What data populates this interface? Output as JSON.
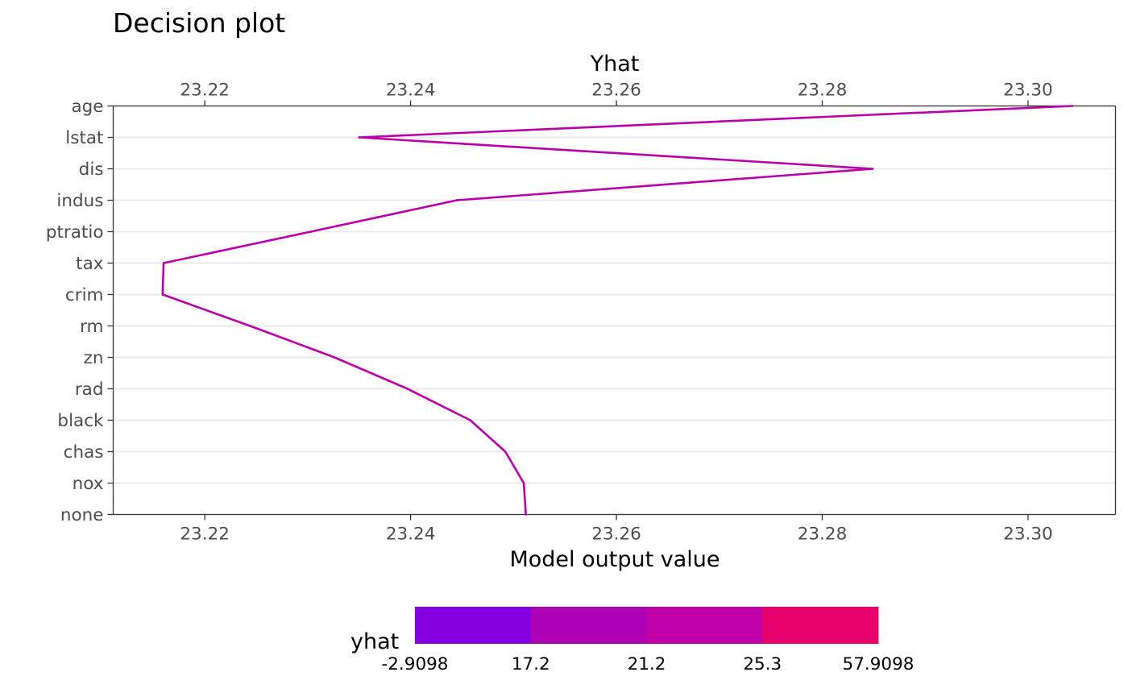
{
  "chart_data": {
    "type": "line",
    "title": "Decision plot",
    "x_top_label": "Yhat",
    "xlabel": "Model output value",
    "xlim": [
      23.2111,
      23.3085
    ],
    "x_ticks": [
      23.22,
      23.24,
      23.26,
      23.28,
      23.3
    ],
    "x_tick_labels": [
      "23.22",
      "23.24",
      "23.26",
      "23.28",
      "23.30"
    ],
    "categories": [
      "age",
      "lstat",
      "dis",
      "indus",
      "ptratio",
      "tax",
      "crim",
      "rm",
      "zn",
      "rad",
      "black",
      "chas",
      "nox",
      "none"
    ],
    "series": [
      {
        "values": [
          23.3043,
          23.235,
          23.2849,
          23.2445,
          23.2303,
          23.216,
          23.2159,
          23.2244,
          23.2326,
          23.2397,
          23.2458,
          23.2492,
          23.251,
          23.2512
        ],
        "color": "#bb00aa"
      }
    ],
    "grid": true,
    "legend": {
      "title": "yhat",
      "position": "bottom",
      "breaks": [
        "-2.9098",
        "17.2",
        "21.2",
        "25.3",
        "57.9098"
      ],
      "colors": [
        "#8400e0",
        "#ad00b6",
        "#c000a8",
        "#e60069"
      ]
    }
  },
  "colors": {
    "line": "#bb00aa",
    "grid": "#ebebeb",
    "axis": "#333333"
  }
}
